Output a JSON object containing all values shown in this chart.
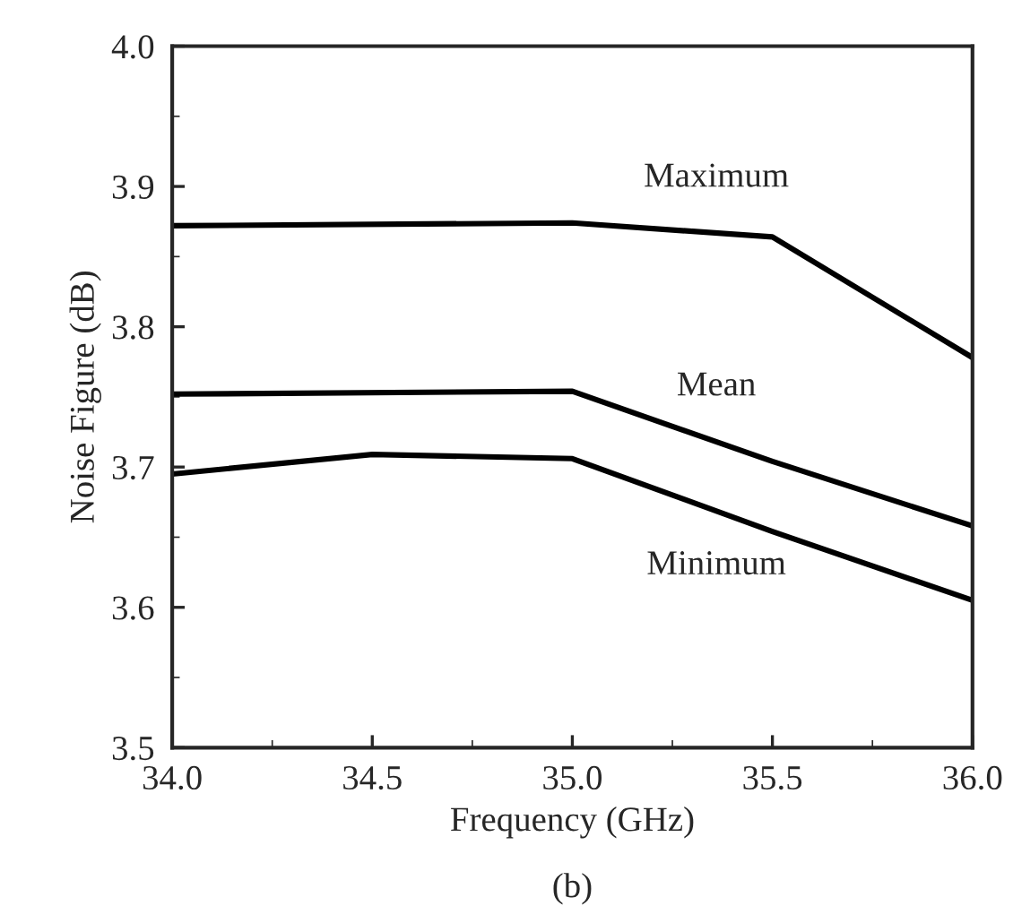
{
  "chart_data": {
    "type": "line",
    "xlabel": "Frequency (GHz)",
    "ylabel": "Noise Figure (dB)",
    "xlim": [
      34.0,
      36.0
    ],
    "xticks": [
      {
        "value": 34.0,
        "label": "34.0"
      },
      {
        "value": 34.5,
        "label": "34.5"
      },
      {
        "value": 35.0,
        "label": "35.0"
      },
      {
        "value": 35.5,
        "label": "35.5"
      },
      {
        "value": 36.0,
        "label": "36.0"
      }
    ],
    "ylim": [
      3.5,
      4.0
    ],
    "yticks": [
      {
        "value": 3.5,
        "label": "3.5"
      },
      {
        "value": 3.6,
        "label": "3.6"
      },
      {
        "value": 3.7,
        "label": "3.7"
      },
      {
        "value": 3.8,
        "label": "3.8"
      },
      {
        "value": 3.9,
        "label": "3.9"
      },
      {
        "value": 4.0,
        "label": "4.0"
      }
    ],
    "grid": false,
    "legend": false,
    "marker": "none",
    "line_style": "solid",
    "series": [
      {
        "name": "Maximum",
        "color": "#000000",
        "x": [
          34.0,
          35.0,
          35.5,
          36.0
        ],
        "values": [
          3.872,
          3.874,
          3.864,
          3.778
        ]
      },
      {
        "name": "Mean",
        "color": "#000000",
        "x": [
          34.0,
          35.0,
          35.5,
          36.0
        ],
        "values": [
          3.752,
          3.754,
          3.704,
          3.658
        ]
      },
      {
        "name": "Minimum",
        "color": "#000000",
        "x": [
          34.0,
          34.5,
          35.0,
          35.5,
          36.0
        ],
        "values": [
          3.695,
          3.709,
          3.706,
          3.654,
          3.605
        ]
      }
    ],
    "annotations": [
      "(b)"
    ]
  }
}
